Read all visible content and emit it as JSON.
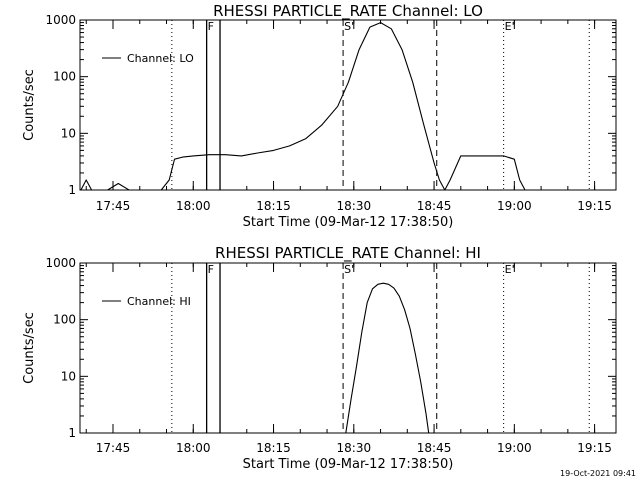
{
  "chart_data": [
    {
      "type": "line",
      "title": "RHESSI PARTICLE_RATE Channel: LO",
      "xlabel": "Start Time (09-Mar-12 17:38:50)",
      "ylabel": "Counts/sec",
      "y_scale": "log",
      "ylim": [
        1,
        1000
      ],
      "y_ticks": [
        "1",
        "10",
        "100",
        "1000"
      ],
      "xlim": [
        "17:38:50",
        "19:19:00"
      ],
      "x_ticks": [
        "17:45",
        "18:00",
        "18:15",
        "18:30",
        "18:45",
        "19:00",
        "19:15"
      ],
      "legend": {
        "position": "top-left",
        "entries": [
          "Channel: LO"
        ]
      },
      "markers": [
        {
          "label": "F",
          "time": "18:02:30",
          "style": "solid"
        },
        {
          "label": "",
          "time": "18:05:00",
          "style": "solid"
        },
        {
          "label": "",
          "time": "17:56:00",
          "style": "dotted"
        },
        {
          "label": "S'",
          "time": "18:28:00",
          "style": "dashed"
        },
        {
          "label": "",
          "time": "18:45:30",
          "style": "dashed"
        },
        {
          "label": "E'",
          "time": "18:58:00",
          "style": "dotted"
        },
        {
          "label": "",
          "time": "19:14:00",
          "style": "dotted"
        }
      ],
      "series": [
        {
          "x": [
            "17:39:00",
            "17:40:00",
            "17:41:00",
            "17:42:00",
            "17:44:00",
            "17:46:00",
            "17:48:00",
            "17:50:00",
            "17:52:00",
            "17:54:00",
            "17:55:30",
            "17:56:30",
            "17:58:00",
            "18:00:00",
            "18:03:00",
            "18:06:00",
            "18:09:00",
            "18:12:00",
            "18:15:00",
            "18:18:00",
            "18:21:00",
            "18:24:00",
            "18:27:00",
            "18:29:00",
            "18:31:00",
            "18:33:00",
            "18:35:00",
            "18:37:00",
            "18:39:00",
            "18:41:00",
            "18:43:00",
            "18:45:00",
            "18:46:00",
            "18:47:00",
            "18:48:00",
            "18:50:00",
            "18:52:00",
            "18:55:00",
            "18:58:00",
            "19:00:00",
            "19:01:00",
            "19:02:00",
            "19:04:00",
            "19:06:00",
            "19:08:00",
            "19:10:00",
            "19:12:00",
            "19:14:00",
            "19:16:00",
            "19:18:00"
          ],
          "values": [
            1,
            1.5,
            1,
            1,
            1,
            1.3,
            1,
            1,
            1,
            1,
            1.5,
            3.5,
            3.8,
            4,
            4.2,
            4.2,
            4,
            4.5,
            5,
            6,
            8,
            14,
            30,
            80,
            300,
            750,
            900,
            700,
            300,
            80,
            15,
            3,
            1.5,
            1,
            1.5,
            4,
            4,
            4,
            4,
            3.5,
            1.5,
            1,
            1,
            1,
            1,
            1,
            1,
            1,
            1,
            1
          ]
        }
      ]
    },
    {
      "type": "line",
      "title": "RHESSI PARTICLE_RATE Channel: HI",
      "xlabel": "Start Time (09-Mar-12 17:38:50)",
      "ylabel": "Counts/sec",
      "y_scale": "log",
      "ylim": [
        1,
        1000
      ],
      "y_ticks": [
        "1",
        "10",
        "100",
        "1000"
      ],
      "xlim": [
        "17:38:50",
        "19:19:00"
      ],
      "x_ticks": [
        "17:45",
        "18:00",
        "18:15",
        "18:30",
        "18:45",
        "19:00",
        "19:15"
      ],
      "legend": {
        "position": "top-left",
        "entries": [
          "Channel: HI"
        ]
      },
      "markers": [
        {
          "label": "F",
          "time": "18:02:30",
          "style": "solid"
        },
        {
          "label": "",
          "time": "18:05:00",
          "style": "solid"
        },
        {
          "label": "",
          "time": "17:56:00",
          "style": "dotted"
        },
        {
          "label": "S'",
          "time": "18:28:00",
          "style": "dashed"
        },
        {
          "label": "",
          "time": "18:45:30",
          "style": "dashed"
        },
        {
          "label": "E'",
          "time": "18:58:00",
          "style": "dotted"
        },
        {
          "label": "",
          "time": "19:14:00",
          "style": "dotted"
        }
      ],
      "series": [
        {
          "x": [
            "18:28:30",
            "18:29:30",
            "18:30:30",
            "18:31:30",
            "18:32:30",
            "18:33:30",
            "18:34:30",
            "18:35:30",
            "18:36:30",
            "18:37:30",
            "18:38:30",
            "18:39:30",
            "18:40:30",
            "18:41:30",
            "18:42:30",
            "18:43:30",
            "18:44:00"
          ],
          "values": [
            1,
            4,
            15,
            60,
            200,
            350,
            420,
            440,
            420,
            360,
            260,
            150,
            70,
            25,
            8,
            2.2,
            1
          ]
        }
      ]
    }
  ],
  "footer": {
    "timestamp": "19-Oct-2021 09:41"
  }
}
